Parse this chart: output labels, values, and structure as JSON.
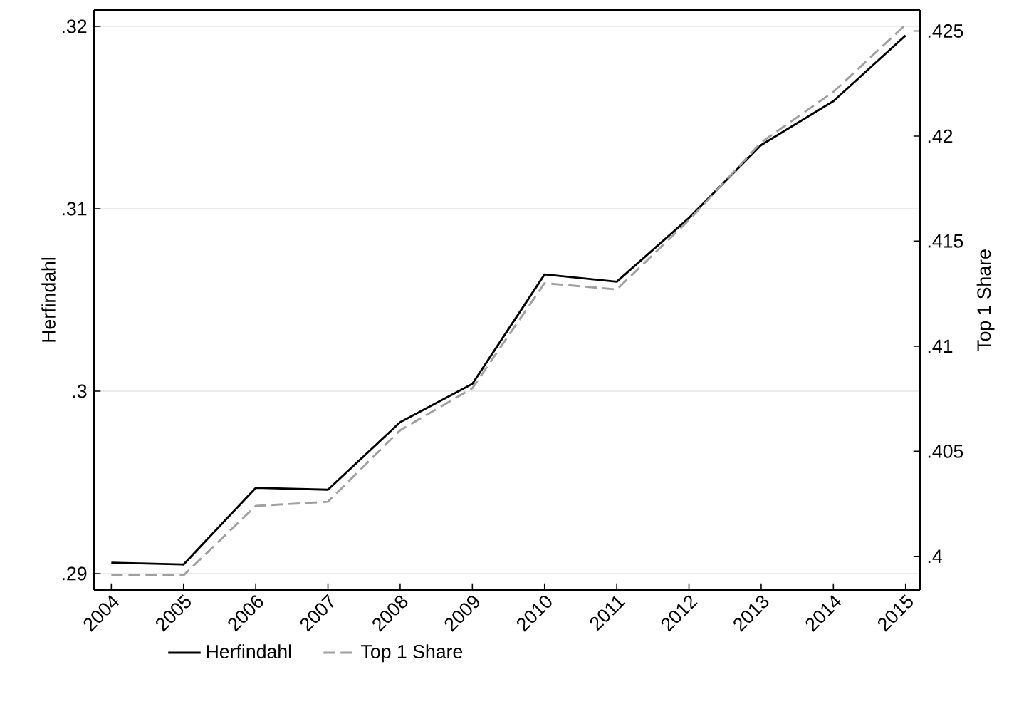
{
  "chart_data": {
    "type": "line",
    "ylabel": "Herfindahl",
    "y2label": "Top 1 Share",
    "x": [
      2004,
      2005,
      2006,
      2007,
      2008,
      2009,
      2010,
      2011,
      2012,
      2013,
      2014,
      2015
    ],
    "series": [
      {
        "name": "Herfindahl",
        "color": "#000000",
        "line_style": "solid",
        "values": [
          0.2906,
          0.2905,
          0.2947,
          0.2946,
          0.2983,
          0.3004,
          0.3064,
          0.306,
          0.3095,
          0.3135,
          0.3159,
          0.3195
        ]
      },
      {
        "name": "Top 1 Share",
        "color": "#a0a0a0",
        "line_style": "dashed",
        "axis": "y2",
        "values": [
          0.3991,
          0.3991,
          0.4024,
          0.4026,
          0.406,
          0.408,
          0.413,
          0.4127,
          0.416,
          0.4197,
          0.4221,
          0.4253
        ]
      }
    ],
    "xlim": [
      2003.76,
      2015.2
    ],
    "xticks": [
      2004,
      2005,
      2006,
      2007,
      2008,
      2009,
      2010,
      2011,
      2012,
      2013,
      2014,
      2015
    ],
    "ylim": [
      0.2891,
      0.3209
    ],
    "yticks": [
      {
        "value": 0.29,
        "label": ".29"
      },
      {
        "value": 0.3,
        "label": ".3"
      },
      {
        "value": 0.31,
        "label": ".31"
      },
      {
        "value": 0.32,
        "label": ".32"
      }
    ],
    "y2lim": [
      0.3984,
      0.426
    ],
    "y2ticks": [
      {
        "value": 0.4,
        "label": ".4"
      },
      {
        "value": 0.405,
        "label": ".405"
      },
      {
        "value": 0.41,
        "label": ".41"
      },
      {
        "value": 0.415,
        "label": ".415"
      },
      {
        "value": 0.42,
        "label": ".42"
      },
      {
        "value": 0.425,
        "label": ".425"
      }
    ],
    "grid": "y",
    "legend": "bottom",
    "marker": "none"
  }
}
